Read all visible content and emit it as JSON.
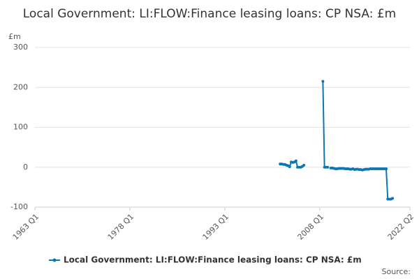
{
  "chart_data": {
    "type": "line",
    "title": "Local Government: LI:FLOW:Finance leasing loans: CP NSA: £m",
    "ylabel": "£m",
    "source": "Source:",
    "x": [
      2001.75,
      2002,
      2002.25,
      2002.5,
      2002.75,
      2003,
      2003.25,
      2003.5,
      2003.75,
      2004,
      2004.25,
      2004.5,
      2004.75,
      2005,
      2005.25,
      2005.5,
      2006,
      2008.5,
      2008.75,
      2009,
      2009.25,
      2009.5,
      2009.75,
      2010,
      2010.25,
      2010.5,
      2010.75,
      2011,
      2011.25,
      2011.5,
      2011.75,
      2012,
      2012.25,
      2012.5,
      2012.75,
      2013,
      2013.25,
      2013.5,
      2013.75,
      2014,
      2014.25,
      2014.5,
      2014.75,
      2015,
      2015.25,
      2015.5,
      2015.75,
      2016,
      2016.25,
      2016.5,
      2016.75,
      2017,
      2017.25,
      2017.5,
      2017.75,
      2018,
      2018.25,
      2018.5,
      2018.75,
      2019,
      2019.25,
      2019.5
    ],
    "series": [
      {
        "name": "Local Government: LI:FLOW:Finance leasing loans: CP NSA: £m",
        "color": "#0e75b4",
        "values": [
          8,
          8,
          7,
          7,
          5,
          4,
          1,
          13,
          12,
          13,
          16,
          0,
          0,
          0,
          2,
          5,
          null,
          215,
          0,
          0,
          0,
          null,
          -2,
          -2,
          -3,
          -4,
          -4,
          -3,
          -3,
          -3,
          -3,
          -4,
          -4,
          -4,
          -5,
          -5,
          -4,
          -6,
          -5,
          -5,
          -6,
          -6,
          -7,
          -6,
          -5,
          -5,
          -5,
          -4,
          -4,
          -4,
          -4,
          -4,
          -4,
          -4,
          -4,
          -4,
          -4,
          -4,
          -80,
          -80,
          -80,
          -78
        ]
      }
    ],
    "xlim": [
      1963,
      2022.25
    ],
    "xticks": [
      {
        "value": 1963,
        "label": "1963 Q1"
      },
      {
        "value": 1978,
        "label": "1978 Q1"
      },
      {
        "value": 1993,
        "label": "1993 Q1"
      },
      {
        "value": 2008,
        "label": "2008 Q1"
      },
      {
        "value": 2022.25,
        "label": "2022 Q2"
      }
    ],
    "ylim": [
      -100,
      300
    ],
    "yticks": [
      -100,
      0,
      100,
      200,
      300
    ],
    "grid": true
  }
}
